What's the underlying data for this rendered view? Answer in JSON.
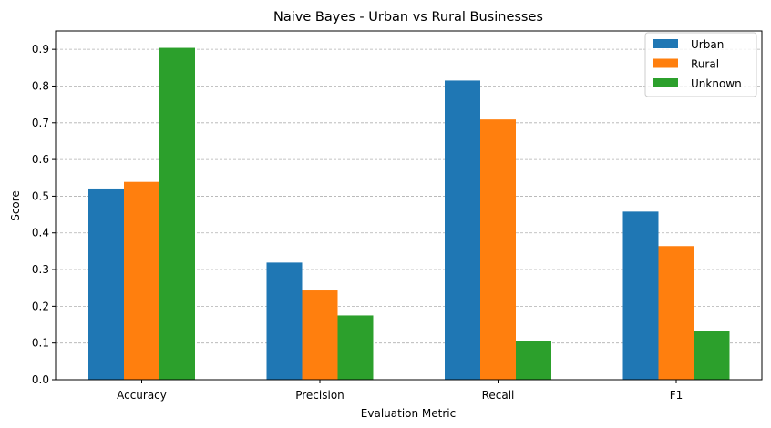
{
  "chart_data": {
    "type": "bar",
    "title": "Naive Bayes - Urban vs Rural Businesses",
    "xlabel": "Evaluation Metric",
    "ylabel": "Score",
    "categories": [
      "Accuracy",
      "Precision",
      "Recall",
      "F1"
    ],
    "series": [
      {
        "name": "Urban",
        "color": "#1f77b4",
        "values": [
          0.521,
          0.319,
          0.815,
          0.458
        ]
      },
      {
        "name": "Rural",
        "color": "#ff7f0e",
        "values": [
          0.539,
          0.243,
          0.709,
          0.364
        ]
      },
      {
        "name": "Unknown",
        "color": "#2ca02c",
        "values": [
          0.904,
          0.175,
          0.105,
          0.132
        ]
      }
    ],
    "ylim": [
      0,
      0.95
    ],
    "yticks": [
      "0.0",
      "0.1",
      "0.2",
      "0.3",
      "0.4",
      "0.5",
      "0.6",
      "0.7",
      "0.8",
      "0.9"
    ],
    "grid": "y-dashed",
    "legend_position": "top-right"
  }
}
